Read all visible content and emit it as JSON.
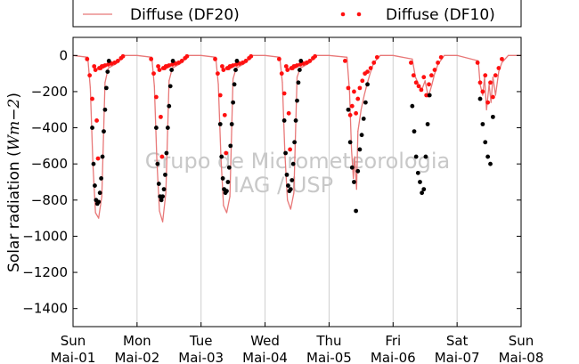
{
  "chart_data": {
    "type": "line",
    "ylabel": "Solar radiation (Wm−2)",
    "ylabel_prefix": "Solar radiation (",
    "ylabel_unit": "Wm−2",
    "ylabel_suffix": ")",
    "ylim": [
      -1500,
      100
    ],
    "yticks": [
      0,
      -200,
      -400,
      -600,
      -800,
      -1000,
      -1200,
      -1400
    ],
    "ytick_labels": [
      "0",
      "−200",
      "−400",
      "−600",
      "−800",
      "−1000",
      "−1200",
      "−1400"
    ],
    "xlim": [
      0,
      7
    ],
    "xticks": [
      {
        "pos": 0,
        "day": "Sun",
        "date": "Mai-01"
      },
      {
        "pos": 1,
        "day": "Mon",
        "date": "Mai-02"
      },
      {
        "pos": 2,
        "day": "Tue",
        "date": "Mai-03"
      },
      {
        "pos": 3,
        "day": "Wed",
        "date": "Mai-04"
      },
      {
        "pos": 4,
        "day": "Thu",
        "date": "Mai-05"
      },
      {
        "pos": 5,
        "day": "Fri",
        "date": "Mai-06"
      },
      {
        "pos": 6,
        "day": "Sat",
        "date": "Mai-07"
      },
      {
        "pos": 7,
        "day": "Sun",
        "date": "Mai-08"
      }
    ],
    "grid": "vertical",
    "legend_position": "top",
    "series": [
      {
        "name": "Diffuse (DF20)",
        "style": "line",
        "color": "#e87878",
        "x": [
          0,
          0.23,
          0.27,
          0.31,
          0.35,
          0.4,
          0.45,
          0.5,
          0.55,
          0.6,
          0.65,
          0.7,
          0.75,
          0.8,
          1,
          1.23,
          1.27,
          1.31,
          1.35,
          1.4,
          1.45,
          1.5,
          1.55,
          1.6,
          1.65,
          1.7,
          1.75,
          1.8,
          2,
          2.23,
          2.27,
          2.31,
          2.35,
          2.4,
          2.45,
          2.5,
          2.55,
          2.6,
          2.65,
          2.7,
          2.75,
          2.8,
          3,
          3.23,
          3.27,
          3.31,
          3.35,
          3.4,
          3.45,
          3.5,
          3.55,
          3.6,
          3.65,
          3.7,
          3.75,
          3.8,
          4,
          4.28,
          4.32,
          4.35,
          4.38,
          4.4,
          4.43,
          4.45,
          4.5,
          4.55,
          4.6,
          4.65,
          4.7,
          4.8,
          5,
          5.3,
          5.35,
          5.4,
          5.45,
          5.5,
          5.55,
          5.6,
          5.65,
          5.7,
          5.8,
          6,
          6.33,
          6.36,
          6.4,
          6.43,
          6.46,
          6.5,
          6.53,
          6.56,
          6.6,
          6.65,
          6.7,
          6.8,
          7
        ],
        "y": [
          0,
          -10,
          -180,
          -600,
          -870,
          -900,
          -780,
          -150,
          -70,
          -60,
          -50,
          -40,
          -20,
          0,
          0,
          -10,
          -170,
          -580,
          -860,
          -920,
          -760,
          -140,
          -70,
          -60,
          -50,
          -40,
          -20,
          0,
          0,
          -10,
          -160,
          -560,
          -830,
          -870,
          -780,
          -130,
          -70,
          -60,
          -50,
          -40,
          -20,
          0,
          0,
          -10,
          -150,
          -540,
          -800,
          -850,
          -760,
          -120,
          -70,
          -60,
          -50,
          -40,
          -20,
          0,
          0,
          -10,
          -200,
          -520,
          -680,
          -560,
          -740,
          -420,
          -300,
          -220,
          -150,
          -90,
          -40,
          0,
          0,
          -20,
          -120,
          -160,
          -190,
          -140,
          -230,
          -170,
          -100,
          -50,
          0,
          0,
          -30,
          -160,
          -220,
          -120,
          -300,
          -160,
          -260,
          -120,
          -220,
          -90,
          -40,
          0,
          0
        ]
      },
      {
        "name": "Diffuse (DF10)",
        "style": "dots",
        "color": "#ff1010",
        "x": [
          0.22,
          0.26,
          0.3,
          0.33,
          0.35,
          0.37,
          0.39,
          0.41,
          0.43,
          0.45,
          0.47,
          0.5,
          0.55,
          0.6,
          0.65,
          0.7,
          0.75,
          0.78,
          1.22,
          1.26,
          1.3,
          1.33,
          1.35,
          1.37,
          1.39,
          1.41,
          1.43,
          1.45,
          1.47,
          1.5,
          1.55,
          1.6,
          1.65,
          1.7,
          1.75,
          1.78,
          2.22,
          2.26,
          2.3,
          2.33,
          2.35,
          2.37,
          2.39,
          2.41,
          2.43,
          2.45,
          2.47,
          2.5,
          2.55,
          2.6,
          2.65,
          2.7,
          2.75,
          2.78,
          3.22,
          3.26,
          3.3,
          3.33,
          3.35,
          3.37,
          3.39,
          3.41,
          3.43,
          3.45,
          3.47,
          3.5,
          3.55,
          3.6,
          3.65,
          3.7,
          3.75,
          3.78,
          4.25,
          4.3,
          4.33,
          4.36,
          4.39,
          4.42,
          4.45,
          4.48,
          4.52,
          4.56,
          4.6,
          4.65,
          4.7,
          4.75,
          5.28,
          5.32,
          5.36,
          5.4,
          5.44,
          5.48,
          5.52,
          5.56,
          5.6,
          5.65,
          5.7,
          5.75,
          6.32,
          6.36,
          6.4,
          6.44,
          6.48,
          6.52,
          6.56,
          6.6,
          6.65,
          6.7
        ],
        "y": [
          -20,
          -110,
          -240,
          -60,
          -80,
          -360,
          -570,
          -70,
          -70,
          -60,
          -60,
          -55,
          -50,
          -45,
          -40,
          -30,
          -15,
          -5,
          -20,
          -100,
          -230,
          -60,
          -80,
          -340,
          -560,
          -70,
          -70,
          -60,
          -60,
          -55,
          -50,
          -45,
          -40,
          -30,
          -15,
          -5,
          -20,
          -100,
          -220,
          -60,
          -80,
          -330,
          -540,
          -70,
          -70,
          -60,
          -60,
          -55,
          -50,
          -45,
          -40,
          -30,
          -15,
          -5,
          -20,
          -100,
          -210,
          -60,
          -80,
          -320,
          -520,
          -70,
          -70,
          -60,
          -60,
          -55,
          -50,
          -45,
          -40,
          -30,
          -15,
          -5,
          -30,
          -180,
          -330,
          -280,
          -200,
          -320,
          -240,
          -180,
          -140,
          -100,
          -90,
          -70,
          -40,
          -10,
          -40,
          -110,
          -150,
          -170,
          -190,
          -120,
          -220,
          -160,
          -110,
          -80,
          -40,
          -10,
          -40,
          -150,
          -200,
          -110,
          -260,
          -150,
          -230,
          -110,
          -70,
          -20
        ]
      },
      {
        "name": "",
        "style": "dots",
        "color": "#000000",
        "x": [
          0.3,
          0.32,
          0.34,
          0.36,
          0.38,
          0.4,
          0.42,
          0.44,
          0.46,
          0.48,
          0.5,
          0.52,
          0.54,
          0.56,
          1.3,
          1.32,
          1.34,
          1.36,
          1.38,
          1.4,
          1.42,
          1.44,
          1.46,
          1.48,
          1.5,
          1.52,
          1.54,
          1.56,
          2.3,
          2.32,
          2.34,
          2.36,
          2.38,
          2.4,
          2.42,
          2.44,
          2.46,
          2.48,
          2.5,
          2.52,
          2.54,
          2.56,
          3.3,
          3.32,
          3.34,
          3.36,
          3.38,
          3.4,
          3.42,
          3.44,
          3.46,
          3.48,
          3.5,
          3.52,
          3.54,
          3.56,
          4.3,
          4.33,
          4.36,
          4.39,
          4.42,
          4.45,
          4.48,
          4.51,
          4.54,
          4.57,
          4.6,
          5.3,
          5.33,
          5.36,
          5.39,
          5.42,
          5.45,
          5.48,
          5.51,
          5.54,
          5.57,
          6.36,
          6.4,
          6.44,
          6.48,
          6.52,
          6.56
        ],
        "y": [
          -400,
          -600,
          -720,
          -800,
          -820,
          -810,
          -760,
          -680,
          -560,
          -420,
          -300,
          -180,
          -90,
          -30,
          -400,
          -600,
          -710,
          -780,
          -800,
          -780,
          -740,
          -660,
          -540,
          -400,
          -280,
          -170,
          -80,
          -30,
          -380,
          -560,
          -680,
          -740,
          -760,
          -750,
          -700,
          -620,
          -500,
          -380,
          -260,
          -160,
          -80,
          -30,
          -360,
          -540,
          -660,
          -720,
          -750,
          -740,
          -690,
          -600,
          -480,
          -360,
          -250,
          -150,
          -80,
          -30,
          -300,
          -480,
          -620,
          -700,
          -860,
          -640,
          -520,
          -440,
          -350,
          -260,
          -160,
          -280,
          -420,
          -560,
          -650,
          -700,
          -760,
          -740,
          -560,
          -380,
          -220,
          -240,
          -380,
          -480,
          -560,
          -600,
          -340
        ]
      }
    ]
  },
  "legend": {
    "series1_label": "Diffuse (DF20)",
    "series2_label": "Diffuse (DF10)"
  },
  "watermark": {
    "line1": "Grupo de Micrometeorologia",
    "line2": "IAG / USP"
  }
}
